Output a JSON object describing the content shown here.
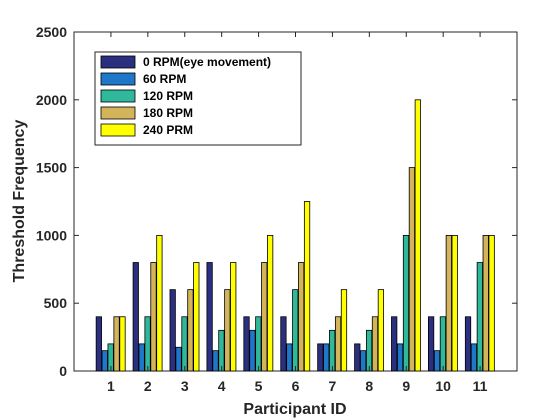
{
  "chart_data": {
    "type": "bar",
    "xlabel": "Participant ID",
    "ylabel": "Threshold Frequency",
    "ylim": [
      0,
      2500
    ],
    "yticks": [
      0,
      500,
      1000,
      1500,
      2000,
      2500
    ],
    "categories": [
      "1",
      "2",
      "3",
      "4",
      "5",
      "6",
      "7",
      "8",
      "9",
      "10",
      "11"
    ],
    "legend_position": "top-left",
    "grid": false,
    "series": [
      {
        "name": "0 RPM(eye movement)",
        "color": "#2b2f7f",
        "values": [
          400,
          800,
          600,
          800,
          400,
          400,
          200,
          200,
          400,
          400,
          400
        ]
      },
      {
        "name": "60 RPM",
        "color": "#1f77c9",
        "values": [
          150,
          200,
          175,
          150,
          300,
          200,
          200,
          150,
          200,
          150,
          200
        ]
      },
      {
        "name": "120 RPM",
        "color": "#2fb89a",
        "values": [
          200,
          400,
          400,
          300,
          400,
          600,
          300,
          300,
          1000,
          400,
          800
        ]
      },
      {
        "name": "180 RPM",
        "color": "#d3b45a",
        "values": [
          400,
          800,
          600,
          600,
          800,
          800,
          400,
          400,
          1500,
          1000,
          1000
        ]
      },
      {
        "name": "240 PRM",
        "color": "#ffff00",
        "values": [
          400,
          1000,
          800,
          800,
          1000,
          1250,
          600,
          600,
          2000,
          1000,
          1000
        ]
      }
    ]
  }
}
